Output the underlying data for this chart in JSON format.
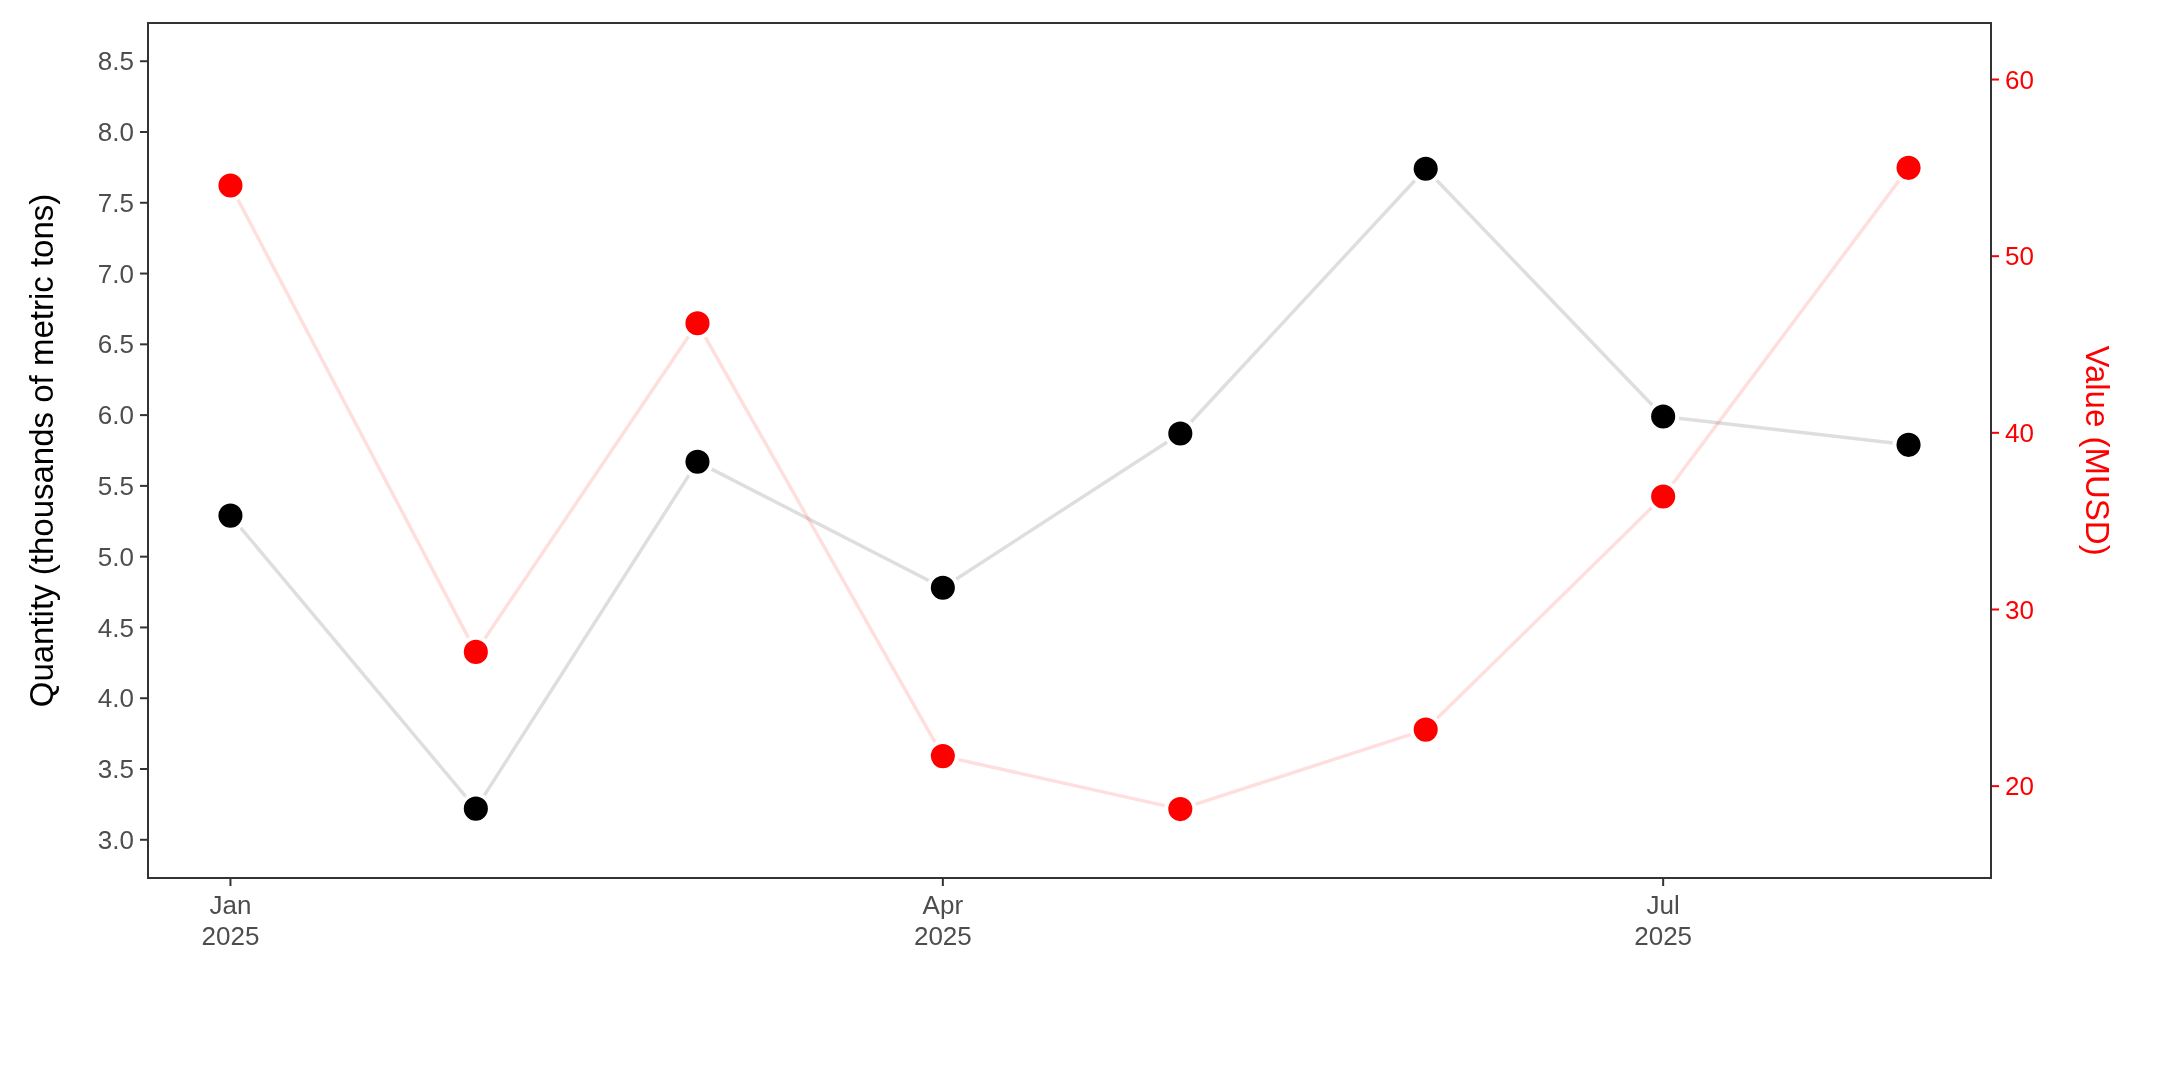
{
  "chart_data": {
    "type": "line",
    "ylabel": "Quantity (thousands of metric tons)",
    "y2label": "Value (MUSD)",
    "x": [
      "2025-01",
      "2025-02",
      "2025-03",
      "2025-04",
      "2025-05",
      "2025-06",
      "2025-07",
      "2025-08"
    ],
    "xlim": [
      "2024-12-21T14:00",
      "2025-08-11T10:00"
    ],
    "xticks": [
      {
        "value": "2025-01",
        "label": "Jan\n2025"
      },
      {
        "value": "2025-04",
        "label": "Apr\n2025"
      },
      {
        "value": "2025-07",
        "label": "Jul\n2025"
      }
    ],
    "ylim": [
      2.73,
      8.77
    ],
    "yticks": [
      {
        "value": 3,
        "label": "3.0"
      },
      3.5,
      {
        "value": 4,
        "label": "4.0"
      },
      4.5,
      {
        "value": 5,
        "label": "5.0"
      },
      5.5,
      {
        "value": 6,
        "label": "6.0"
      },
      6.5,
      {
        "value": 7,
        "label": "7.0"
      },
      7.5,
      {
        "value": 8,
        "label": "8.0"
      },
      8.5
    ],
    "y2lim": [
      14.8,
      63.2
    ],
    "y2ticks": [
      20,
      30,
      40,
      50,
      60
    ],
    "series": [
      {
        "color": "#000000",
        "values": [
          5.29,
          3.22,
          5.67,
          4.78,
          5.87,
          7.74,
          5.99,
          5.79
        ]
      },
      {
        "color": "#ff0000",
        "axis": "y2",
        "values": [
          54.0,
          27.6,
          46.2,
          21.7,
          18.7,
          23.2,
          36.4,
          55.0
        ]
      }
    ],
    "marker": "circle",
    "line_style": "solid",
    "grid": false
  }
}
